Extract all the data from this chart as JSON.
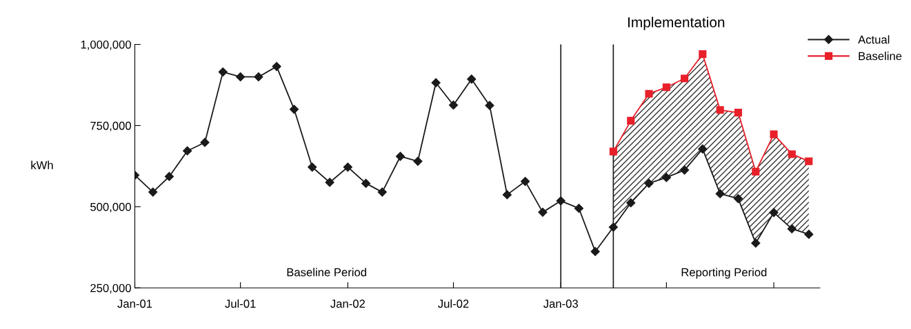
{
  "chart_data": {
    "type": "line",
    "title": "Implementation",
    "ylabel": "kWh",
    "x": [
      "2001-01",
      "2001-02",
      "2001-03",
      "2001-04",
      "2001-05",
      "2001-06",
      "2001-07",
      "2001-08",
      "2001-09",
      "2001-10",
      "2001-11",
      "2001-12",
      "2002-01",
      "2002-02",
      "2002-03",
      "2002-04",
      "2002-05",
      "2002-06",
      "2002-07",
      "2002-08",
      "2002-09",
      "2002-10",
      "2002-11",
      "2002-12",
      "2003-01",
      "2003-02",
      "2003-03",
      "2003-04",
      "2003-05",
      "2003-06",
      "2003-07",
      "2003-08",
      "2003-09",
      "2003-10",
      "2003-11",
      "2003-12",
      "2004-01",
      "2004-02",
      "2004-03"
    ],
    "series": [
      {
        "name": "Actual",
        "color": "#1a1a1a",
        "marker": "diamond",
        "values": [
          597000,
          545000,
          593000,
          672000,
          698000,
          915000,
          900000,
          900000,
          932000,
          800000,
          622000,
          575000,
          622000,
          572000,
          545000,
          655000,
          640000,
          882000,
          813000,
          893000,
          812000,
          537000,
          578000,
          483000,
          518000,
          495000,
          362000,
          437000,
          512000,
          572000,
          590000,
          613000,
          678000,
          540000,
          525000,
          388000,
          482000,
          432000,
          415000
        ]
      },
      {
        "name": "Baseline",
        "color": "#e8202a",
        "marker": "square",
        "x": [
          "2003-04",
          "2003-05",
          "2003-06",
          "2003-07",
          "2003-08",
          "2003-09",
          "2003-10",
          "2003-11",
          "2003-12",
          "2004-01",
          "2004-02",
          "2004-03"
        ],
        "values": [
          670000,
          765000,
          848000,
          868000,
          895000,
          970000,
          798000,
          790000,
          608000,
          723000,
          662000,
          640000
        ],
        "lower": [
          437000,
          512000,
          572000,
          590000,
          613000,
          678000,
          540000,
          525000,
          388000,
          482000,
          432000,
          415000
        ],
        "upper": [
          670000,
          765000,
          848000,
          868000,
          895000,
          970000,
          798000,
          790000,
          608000,
          723000,
          662000,
          640000
        ]
      }
    ],
    "xlim": [
      "2001-01-01",
      "2004-03-20"
    ],
    "xticks": [
      {
        "value": "2001-01",
        "label": "Jan-01"
      },
      {
        "value": "2001-07",
        "label": "Jul-01"
      },
      {
        "value": "2002-01",
        "label": "Jan-02"
      },
      {
        "value": "2002-07",
        "label": "Jul-02"
      },
      {
        "value": "2003-01",
        "label": "Jan-03"
      },
      {
        "value": "2003-07",
        "label": null
      },
      {
        "value": "2004-01",
        "label": null
      }
    ],
    "ylim": [
      250000,
      1000000
    ],
    "yticks": [
      {
        "value": 250000,
        "label": "250,000"
      },
      {
        "value": 500000,
        "label": "500,000"
      },
      {
        "value": 750000,
        "label": "750,000"
      },
      {
        "value": 1000000,
        "label": "1,000,000"
      }
    ],
    "ref_lines": [
      {
        "axis": "x",
        "value": "2003-01",
        "color": "#1a1a1a"
      },
      {
        "axis": "x",
        "value": "2003-04",
        "color": "#1a1a1a"
      }
    ],
    "annotations": [
      "Baseline Period",
      "Reporting Period"
    ],
    "grid": false,
    "legend": "top right",
    "line_style": "solid"
  }
}
